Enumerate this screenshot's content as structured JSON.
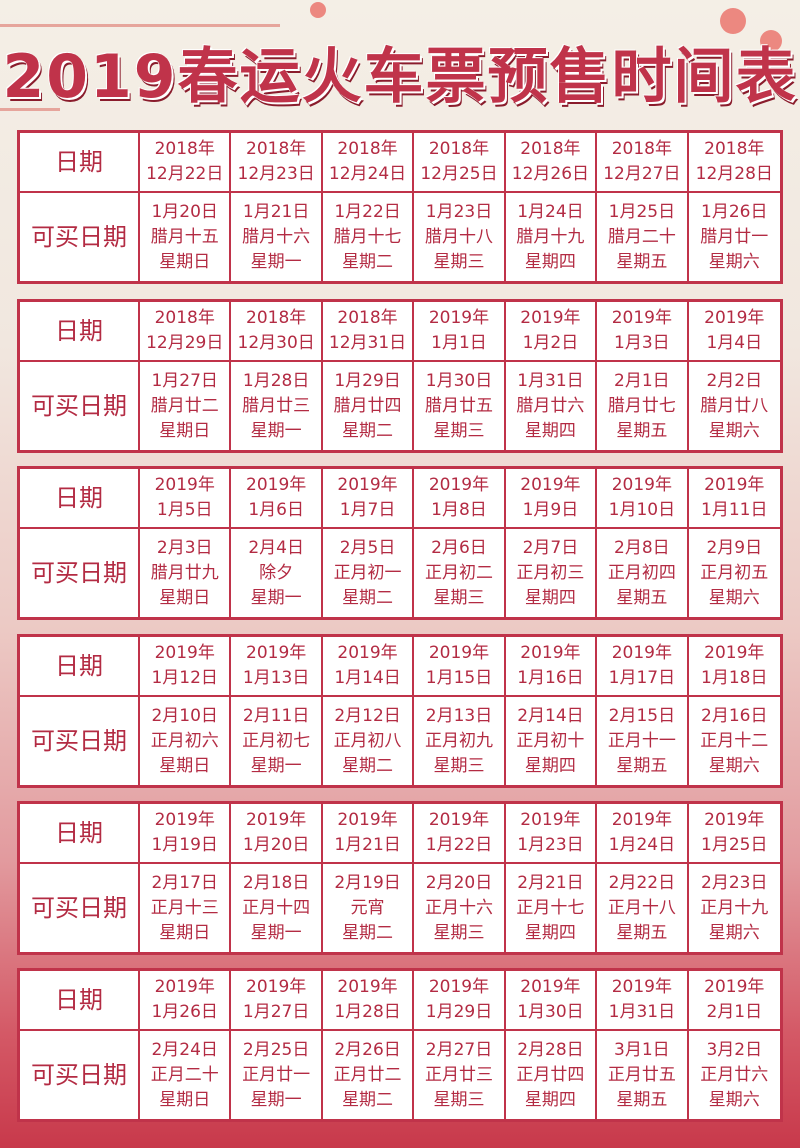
{
  "title": "2019春运火车票预售时间表",
  "row_labels": {
    "date": "日期",
    "buy_date": "可买日期"
  },
  "colors": {
    "accent": "#c0334a",
    "text": "#b32b43"
  },
  "tables": [
    {
      "dates": [
        [
          "2018年",
          "12月22日"
        ],
        [
          "2018年",
          "12月23日"
        ],
        [
          "2018年",
          "12月24日"
        ],
        [
          "2018年",
          "12月25日"
        ],
        [
          "2018年",
          "12月26日"
        ],
        [
          "2018年",
          "12月27日"
        ],
        [
          "2018年",
          "12月28日"
        ]
      ],
      "buy": [
        [
          "1月20日",
          "腊月十五",
          "星期日"
        ],
        [
          "1月21日",
          "腊月十六",
          "星期一"
        ],
        [
          "1月22日",
          "腊月十七",
          "星期二"
        ],
        [
          "1月23日",
          "腊月十八",
          "星期三"
        ],
        [
          "1月24日",
          "腊月十九",
          "星期四"
        ],
        [
          "1月25日",
          "腊月二十",
          "星期五"
        ],
        [
          "1月26日",
          "腊月廿一",
          "星期六"
        ]
      ]
    },
    {
      "dates": [
        [
          "2018年",
          "12月29日"
        ],
        [
          "2018年",
          "12月30日"
        ],
        [
          "2018年",
          "12月31日"
        ],
        [
          "2019年",
          "1月1日"
        ],
        [
          "2019年",
          "1月2日"
        ],
        [
          "2019年",
          "1月3日"
        ],
        [
          "2019年",
          "1月4日"
        ]
      ],
      "buy": [
        [
          "1月27日",
          "腊月廿二",
          "星期日"
        ],
        [
          "1月28日",
          "腊月廿三",
          "星期一"
        ],
        [
          "1月29日",
          "腊月廿四",
          "星期二"
        ],
        [
          "1月30日",
          "腊月廿五",
          "星期三"
        ],
        [
          "1月31日",
          "腊月廿六",
          "星期四"
        ],
        [
          "2月1日",
          "腊月廿七",
          "星期五"
        ],
        [
          "2月2日",
          "腊月廿八",
          "星期六"
        ]
      ]
    },
    {
      "dates": [
        [
          "2019年",
          "1月5日"
        ],
        [
          "2019年",
          "1月6日"
        ],
        [
          "2019年",
          "1月7日"
        ],
        [
          "2019年",
          "1月8日"
        ],
        [
          "2019年",
          "1月9日"
        ],
        [
          "2019年",
          "1月10日"
        ],
        [
          "2019年",
          "1月11日"
        ]
      ],
      "buy": [
        [
          "2月3日",
          "腊月廿九",
          "星期日"
        ],
        [
          "2月4日",
          "除夕",
          "星期一"
        ],
        [
          "2月5日",
          "正月初一",
          "星期二"
        ],
        [
          "2月6日",
          "正月初二",
          "星期三"
        ],
        [
          "2月7日",
          "正月初三",
          "星期四"
        ],
        [
          "2月8日",
          "正月初四",
          "星期五"
        ],
        [
          "2月9日",
          "正月初五",
          "星期六"
        ]
      ]
    },
    {
      "dates": [
        [
          "2019年",
          "1月12日"
        ],
        [
          "2019年",
          "1月13日"
        ],
        [
          "2019年",
          "1月14日"
        ],
        [
          "2019年",
          "1月15日"
        ],
        [
          "2019年",
          "1月16日"
        ],
        [
          "2019年",
          "1月17日"
        ],
        [
          "2019年",
          "1月18日"
        ]
      ],
      "buy": [
        [
          "2月10日",
          "正月初六",
          "星期日"
        ],
        [
          "2月11日",
          "正月初七",
          "星期一"
        ],
        [
          "2月12日",
          "正月初八",
          "星期二"
        ],
        [
          "2月13日",
          "正月初九",
          "星期三"
        ],
        [
          "2月14日",
          "正月初十",
          "星期四"
        ],
        [
          "2月15日",
          "正月十一",
          "星期五"
        ],
        [
          "2月16日",
          "正月十二",
          "星期六"
        ]
      ]
    },
    {
      "dates": [
        [
          "2019年",
          "1月19日"
        ],
        [
          "2019年",
          "1月20日"
        ],
        [
          "2019年",
          "1月21日"
        ],
        [
          "2019年",
          "1月22日"
        ],
        [
          "2019年",
          "1月23日"
        ],
        [
          "2019年",
          "1月24日"
        ],
        [
          "2019年",
          "1月25日"
        ]
      ],
      "buy": [
        [
          "2月17日",
          "正月十三",
          "星期日"
        ],
        [
          "2月18日",
          "正月十四",
          "星期一"
        ],
        [
          "2月19日",
          "元宵",
          "星期二"
        ],
        [
          "2月20日",
          "正月十六",
          "星期三"
        ],
        [
          "2月21日",
          "正月十七",
          "星期四"
        ],
        [
          "2月22日",
          "正月十八",
          "星期五"
        ],
        [
          "2月23日",
          "正月十九",
          "星期六"
        ]
      ]
    },
    {
      "dates": [
        [
          "2019年",
          "1月26日"
        ],
        [
          "2019年",
          "1月27日"
        ],
        [
          "2019年",
          "1月28日"
        ],
        [
          "2019年",
          "1月29日"
        ],
        [
          "2019年",
          "1月30日"
        ],
        [
          "2019年",
          "1月31日"
        ],
        [
          "2019年",
          "2月1日"
        ]
      ],
      "buy": [
        [
          "2月24日",
          "正月二十",
          "星期日"
        ],
        [
          "2月25日",
          "正月廿一",
          "星期一"
        ],
        [
          "2月26日",
          "正月廿二",
          "星期二"
        ],
        [
          "2月27日",
          "正月廿三",
          "星期三"
        ],
        [
          "2月28日",
          "正月廿四",
          "星期四"
        ],
        [
          "3月1日",
          "正月廿五",
          "星期五"
        ],
        [
          "3月2日",
          "正月廿六",
          "星期六"
        ]
      ]
    }
  ]
}
